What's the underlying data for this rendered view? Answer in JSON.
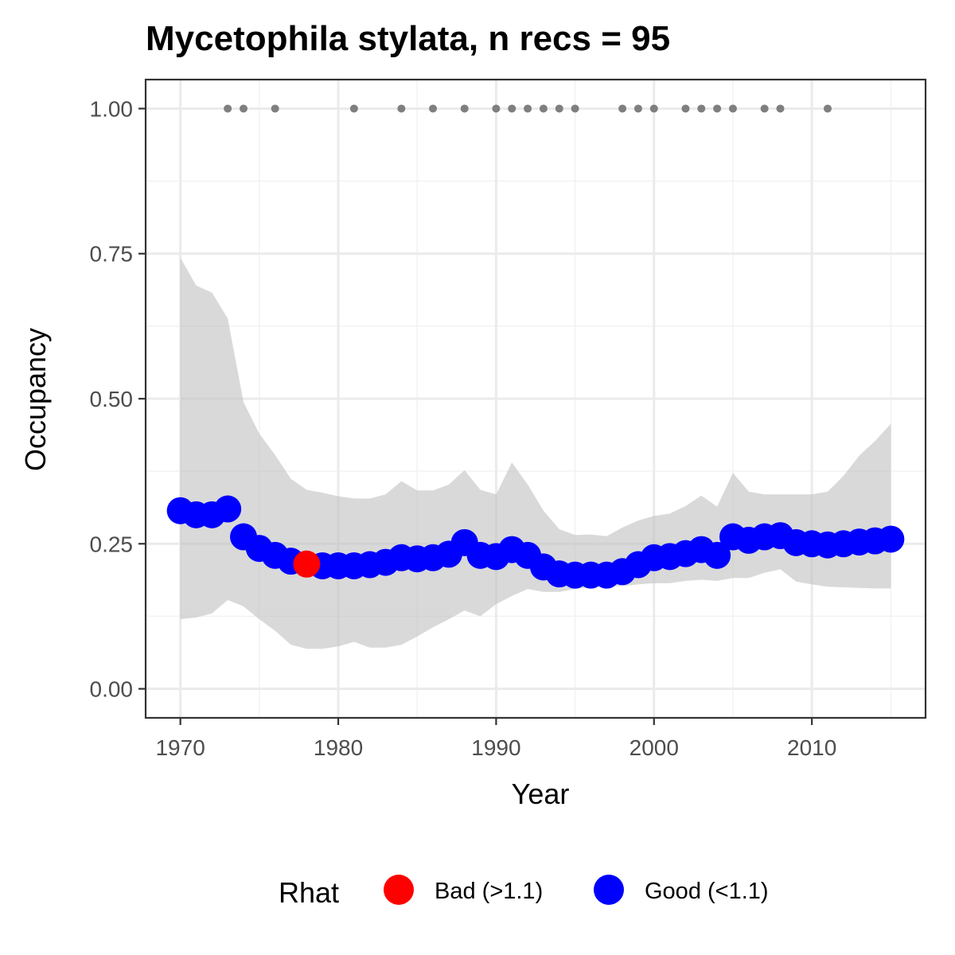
{
  "chart_data": {
    "type": "line",
    "title": "Mycetophila stylata, n recs = 95",
    "xlabel": "Year",
    "ylabel": "Occupancy",
    "xlim": [
      1967.8,
      2017.2
    ],
    "ylim": [
      -0.05,
      1.05
    ],
    "x_ticks": [
      1970,
      1980,
      1990,
      2000,
      2010
    ],
    "x_tick_labels": [
      "1970",
      "1980",
      "1990",
      "2000",
      "2010"
    ],
    "y_ticks": [
      0,
      0.25,
      0.5,
      0.75,
      1.0
    ],
    "y_tick_labels": [
      "0.00",
      "0.25",
      "0.50",
      "0.75",
      "1.00"
    ],
    "grid": true,
    "x": [
      1970,
      1971,
      1972,
      1973,
      1974,
      1975,
      1976,
      1977,
      1978,
      1979,
      1980,
      1981,
      1982,
      1983,
      1984,
      1985,
      1986,
      1987,
      1988,
      1989,
      1990,
      1991,
      1992,
      1993,
      1994,
      1995,
      1996,
      1997,
      1998,
      1999,
      2000,
      2001,
      2002,
      2003,
      2004,
      2005,
      2006,
      2007,
      2008,
      2009,
      2010,
      2011,
      2012,
      2013,
      2014,
      2015
    ],
    "occupancy_mean": [
      0.307,
      0.3,
      0.3,
      0.31,
      0.262,
      0.242,
      0.23,
      0.22,
      0.215,
      0.212,
      0.212,
      0.212,
      0.214,
      0.218,
      0.226,
      0.224,
      0.226,
      0.232,
      0.252,
      0.23,
      0.228,
      0.24,
      0.23,
      0.21,
      0.198,
      0.196,
      0.196,
      0.196,
      0.202,
      0.214,
      0.226,
      0.228,
      0.233,
      0.24,
      0.23,
      0.262,
      0.256,
      0.262,
      0.264,
      0.252,
      0.25,
      0.248,
      0.25,
      0.253,
      0.255,
      0.258
    ],
    "ci_upper": [
      0.743,
      0.695,
      0.683,
      0.638,
      0.494,
      0.44,
      0.403,
      0.362,
      0.343,
      0.338,
      0.332,
      0.328,
      0.328,
      0.335,
      0.358,
      0.342,
      0.342,
      0.352,
      0.377,
      0.343,
      0.335,
      0.39,
      0.352,
      0.307,
      0.275,
      0.265,
      0.266,
      0.263,
      0.278,
      0.29,
      0.298,
      0.302,
      0.315,
      0.333,
      0.314,
      0.372,
      0.34,
      0.335,
      0.335,
      0.335,
      0.335,
      0.34,
      0.367,
      0.402,
      0.427,
      0.457
    ],
    "ci_lower": [
      0.12,
      0.123,
      0.13,
      0.153,
      0.142,
      0.12,
      0.1,
      0.076,
      0.069,
      0.069,
      0.073,
      0.081,
      0.071,
      0.071,
      0.076,
      0.09,
      0.106,
      0.12,
      0.135,
      0.125,
      0.146,
      0.16,
      0.172,
      0.167,
      0.167,
      0.172,
      0.175,
      0.177,
      0.177,
      0.18,
      0.182,
      0.182,
      0.186,
      0.188,
      0.186,
      0.191,
      0.191,
      0.2,
      0.206,
      0.185,
      0.18,
      0.176,
      0.175,
      0.174,
      0.173,
      0.173
    ],
    "rhat": [
      "good",
      "good",
      "good",
      "good",
      "good",
      "good",
      "good",
      "good",
      "bad",
      "good",
      "good",
      "good",
      "good",
      "good",
      "good",
      "good",
      "good",
      "good",
      "good",
      "good",
      "good",
      "good",
      "good",
      "good",
      "good",
      "good",
      "good",
      "good",
      "good",
      "good",
      "good",
      "good",
      "good",
      "good",
      "good",
      "good",
      "good",
      "good",
      "good",
      "good",
      "good",
      "good",
      "good",
      "good",
      "good",
      "good"
    ],
    "record_years": [
      1973,
      1974,
      1976,
      1981,
      1984,
      1986,
      1988,
      1990,
      1991,
      1992,
      1993,
      1994,
      1995,
      1998,
      1999,
      2000,
      2002,
      2003,
      2004,
      2005,
      2007,
      2008,
      2011
    ],
    "record_y": 1.0,
    "legend": {
      "title": "Rhat",
      "position": "bottom",
      "entries": [
        {
          "key": "bad",
          "label": "Bad (>1.1)",
          "color": "#ff0000"
        },
        {
          "key": "good",
          "label": "Good (<1.1)",
          "color": "#0000ff"
        }
      ]
    },
    "colors": {
      "ribbon": "#bfbfbf",
      "record_points": "#7f7f7f",
      "panel_border": "#333333",
      "grid_major": "#ebebeb",
      "grid_minor": "#f2f2f2"
    }
  }
}
